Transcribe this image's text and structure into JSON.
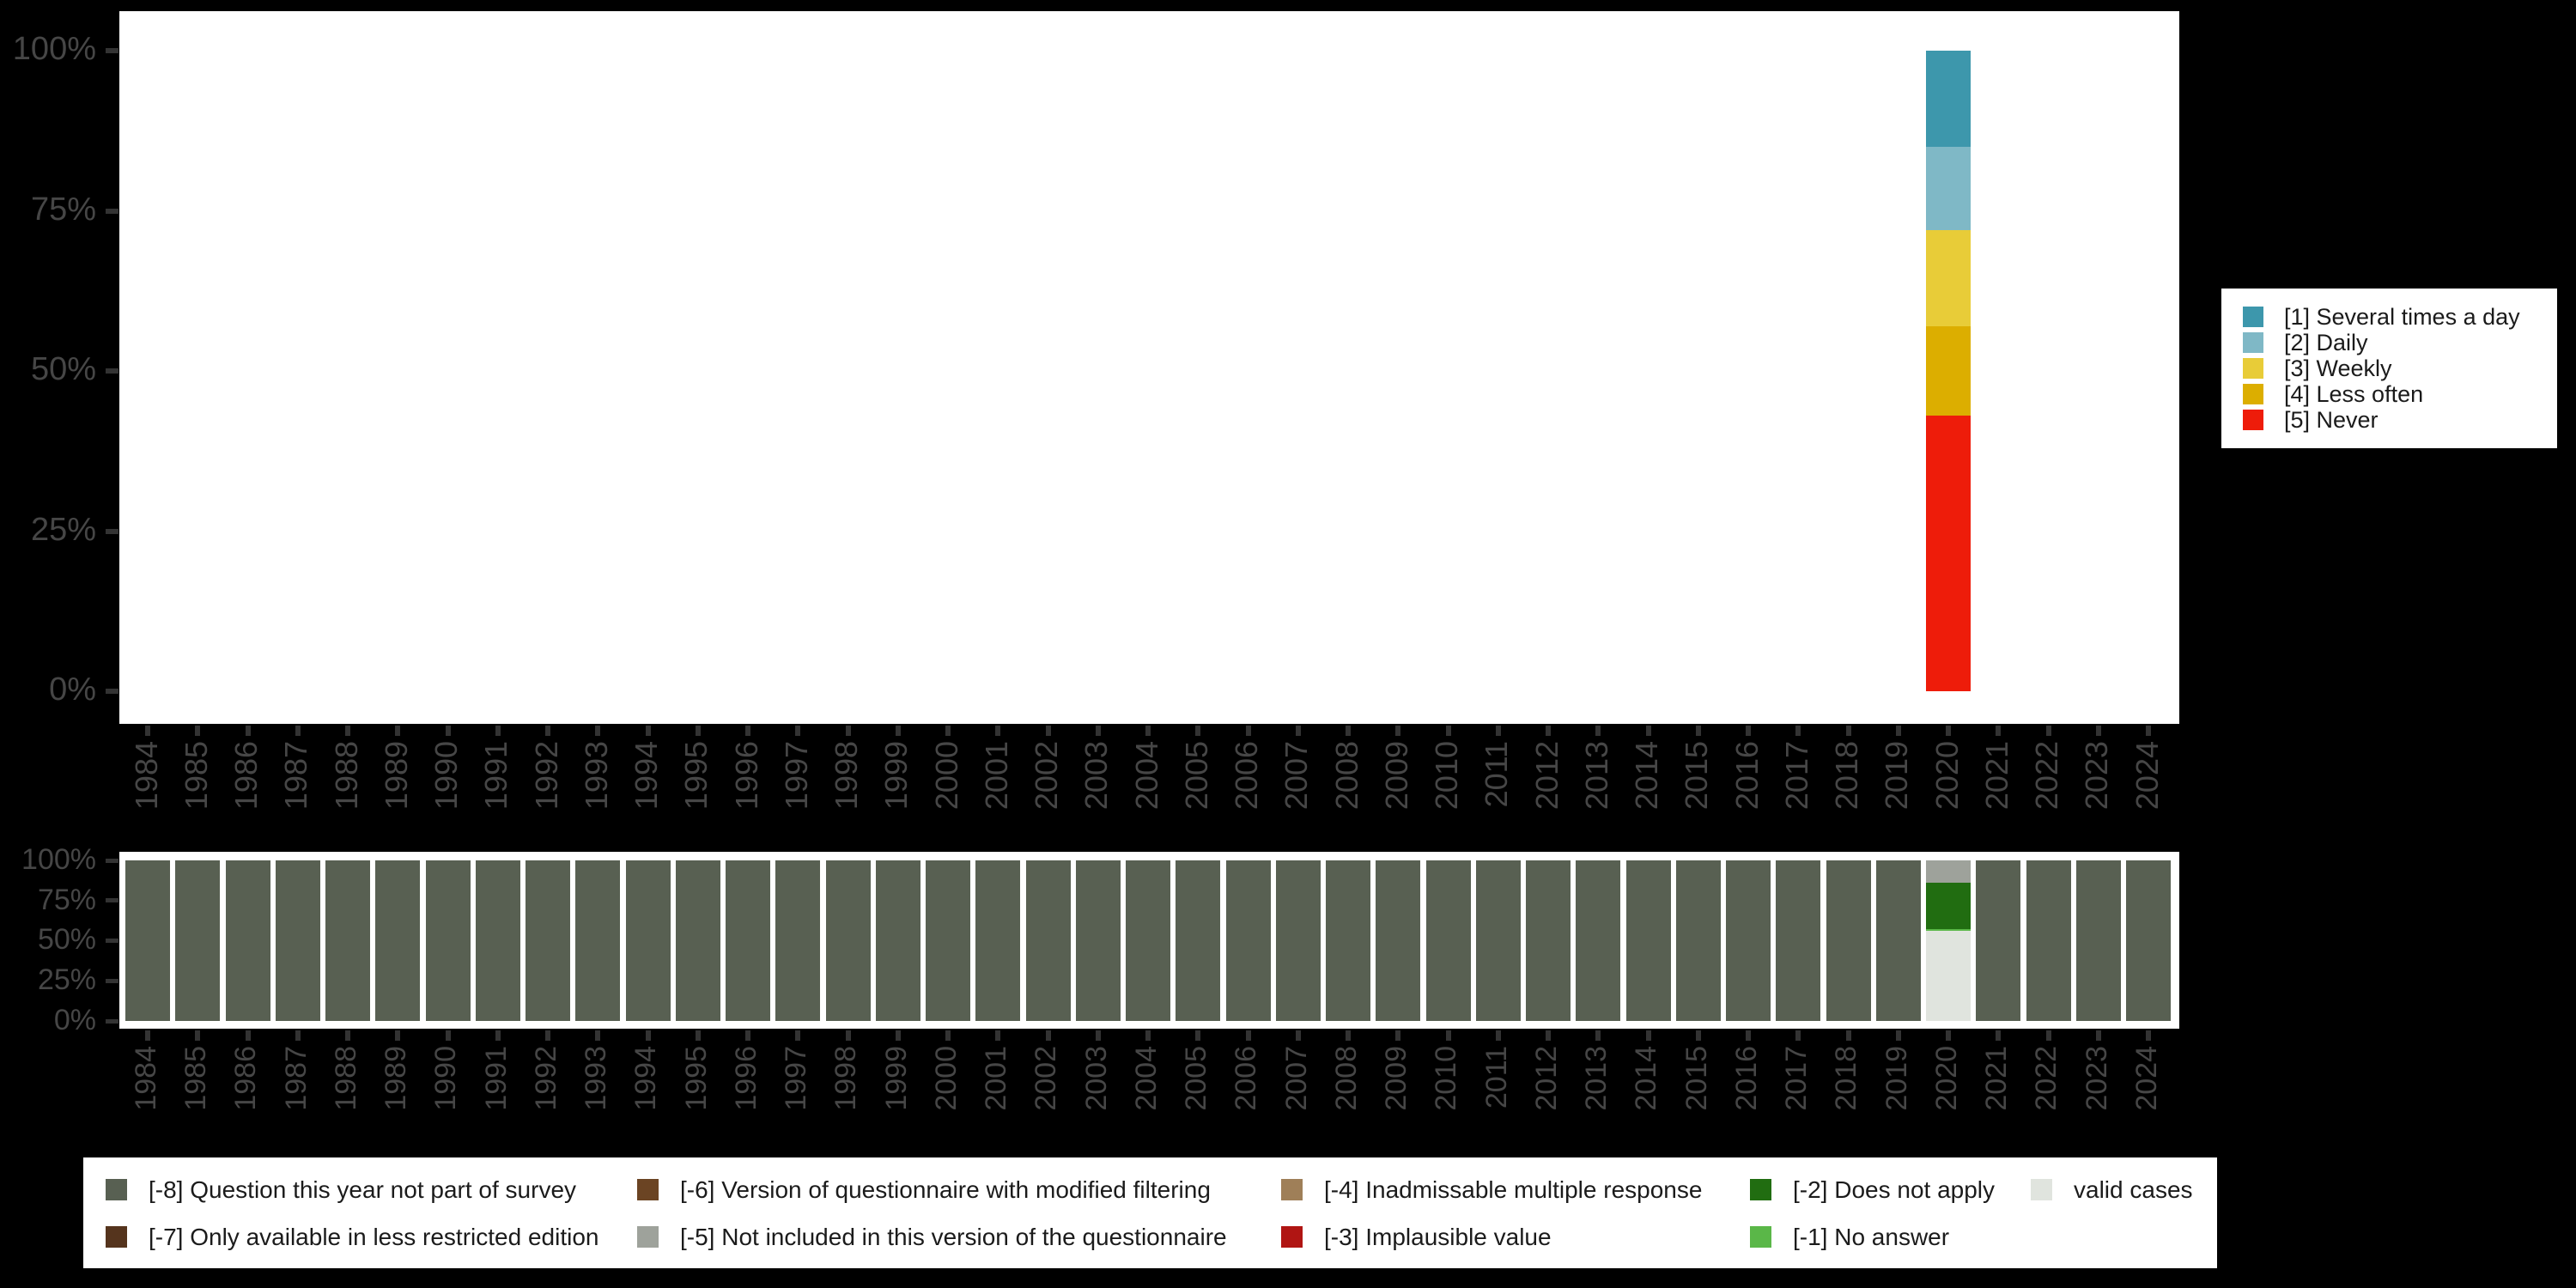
{
  "canvas": {
    "background": "#000000"
  },
  "colors": {
    "axis_text": "#464646",
    "tick": "#333333",
    "plot_background": "#ffffff",
    "legend_background": "#ffffff",
    "legend_text": "#1b1b1b"
  },
  "chart_data": [
    {
      "id": "frequency",
      "type": "bar",
      "stacked": true,
      "orientation": "vertical",
      "title": "",
      "xlabel": "",
      "ylabel": "",
      "grid": false,
      "legend_position": "right",
      "y_axis": {
        "ticks": [
          "0%",
          "25%",
          "50%",
          "75%",
          "100%"
        ],
        "range": [
          0,
          100
        ]
      },
      "categories": [
        "1984",
        "1985",
        "1986",
        "1987",
        "1988",
        "1989",
        "1990",
        "1991",
        "1992",
        "1993",
        "1994",
        "1995",
        "1996",
        "1997",
        "1998",
        "1999",
        "2000",
        "2001",
        "2002",
        "2003",
        "2004",
        "2005",
        "2006",
        "2007",
        "2008",
        "2009",
        "2010",
        "2011",
        "2012",
        "2013",
        "2014",
        "2015",
        "2016",
        "2017",
        "2018",
        "2019",
        "2020",
        "2021",
        "2022",
        "2023",
        "2024"
      ],
      "series": [
        {
          "name": "[1] Several times a day",
          "color": "#3D97AC",
          "default": 0,
          "values_by_category": {
            "2020": 15
          }
        },
        {
          "name": "[2] Daily",
          "color": "#7FB8C6",
          "default": 0,
          "values_by_category": {
            "2020": 13
          }
        },
        {
          "name": "[3] Weekly",
          "color": "#E8CC38",
          "default": 0,
          "values_by_category": {
            "2020": 15
          }
        },
        {
          "name": "[4] Less often",
          "color": "#DCAE00",
          "default": 0,
          "values_by_category": {
            "2020": 14
          }
        },
        {
          "name": "[5] Never",
          "color": "#EE1C0A",
          "default": 0,
          "values_by_category": {
            "2020": 43
          }
        }
      ]
    },
    {
      "id": "missing-values",
      "type": "bar",
      "stacked": true,
      "orientation": "vertical",
      "title": "",
      "xlabel": "",
      "ylabel": "",
      "grid": false,
      "legend_position": "bottom",
      "y_axis": {
        "ticks": [
          "0%",
          "25%",
          "50%",
          "75%",
          "100%"
        ],
        "range": [
          0,
          100
        ]
      },
      "categories": [
        "1984",
        "1985",
        "1986",
        "1987",
        "1988",
        "1989",
        "1990",
        "1991",
        "1992",
        "1993",
        "1994",
        "1995",
        "1996",
        "1997",
        "1998",
        "1999",
        "2000",
        "2001",
        "2002",
        "2003",
        "2004",
        "2005",
        "2006",
        "2007",
        "2008",
        "2009",
        "2010",
        "2011",
        "2012",
        "2013",
        "2014",
        "2015",
        "2016",
        "2017",
        "2018",
        "2019",
        "2020",
        "2021",
        "2022",
        "2023",
        "2024"
      ],
      "series": [
        {
          "name": "[-8] Question this year not part of survey",
          "color": "#586052",
          "default": 100,
          "values_by_category": {
            "2020": 0
          }
        },
        {
          "name": "[-7] Only available in less restricted edition",
          "color": "#55341D",
          "default": 0,
          "values_by_category": {}
        },
        {
          "name": "[-6] Version of questionnaire with modified filtering",
          "color": "#6B4423",
          "default": 0,
          "values_by_category": {}
        },
        {
          "name": "[-5] Not included in this version of the questionnaire",
          "color": "#9EA29B",
          "default": 0,
          "values_by_category": {
            "2020": 14
          }
        },
        {
          "name": "[-4] Inadmissable multiple response",
          "color": "#9F7F58",
          "default": 0,
          "values_by_category": {}
        },
        {
          "name": "[-3] Implausible value",
          "color": "#B01513",
          "default": 0,
          "values_by_category": {}
        },
        {
          "name": "[-2] Does not apply",
          "color": "#216D11",
          "default": 0,
          "values_by_category": {
            "2020": 29
          }
        },
        {
          "name": "[-1] No answer",
          "color": "#5AB748",
          "default": 0,
          "values_by_category": {
            "2020": 1
          }
        },
        {
          "name": "valid cases",
          "color": "#E0E4DE",
          "default": 0,
          "values_by_category": {
            "2020": 56
          }
        }
      ]
    }
  ]
}
